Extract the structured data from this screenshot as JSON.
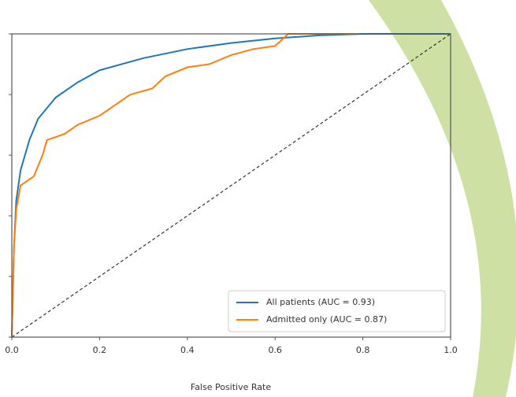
{
  "chart_data": {
    "type": "line",
    "xlabel": "False Positive Rate",
    "xlim": [
      0,
      1
    ],
    "ylim": [
      0,
      1
    ],
    "xticks": [
      {
        "value": 0,
        "label": "0.0"
      },
      0.2,
      0.4,
      0.6,
      0.8,
      {
        "value": 1,
        "label": "1.0"
      }
    ],
    "yticks": [
      0,
      0.2,
      0.4,
      0.6,
      0.8,
      1
    ],
    "legend": "lower right",
    "series": [
      {
        "name": "All patients (AUC = 0.93)",
        "color": "#1f77b4",
        "x": [
          0,
          0.005,
          0.01,
          0.02,
          0.04,
          0.06,
          0.1,
          0.15,
          0.2,
          0.3,
          0.4,
          0.5,
          0.6,
          0.7,
          0.8,
          1
        ],
        "values": [
          0,
          0.3,
          0.45,
          0.55,
          0.65,
          0.72,
          0.79,
          0.84,
          0.88,
          0.92,
          0.95,
          0.97,
          0.985,
          0.995,
          1,
          1
        ]
      },
      {
        "name": "Admitted only (AUC = 0.87)",
        "color": "#ff7f0e",
        "x": [
          0,
          0.005,
          0.01,
          0.02,
          0.05,
          0.07,
          0.08,
          0.12,
          0.15,
          0.2,
          0.24,
          0.27,
          0.32,
          0.35,
          0.4,
          0.45,
          0.5,
          0.55,
          0.6,
          0.63,
          0.78
        ],
        "values": [
          0,
          0.3,
          0.42,
          0.5,
          0.53,
          0.6,
          0.65,
          0.67,
          0.7,
          0.73,
          0.77,
          0.8,
          0.82,
          0.86,
          0.89,
          0.9,
          0.93,
          0.95,
          0.96,
          1,
          1
        ]
      }
    ]
  }
}
